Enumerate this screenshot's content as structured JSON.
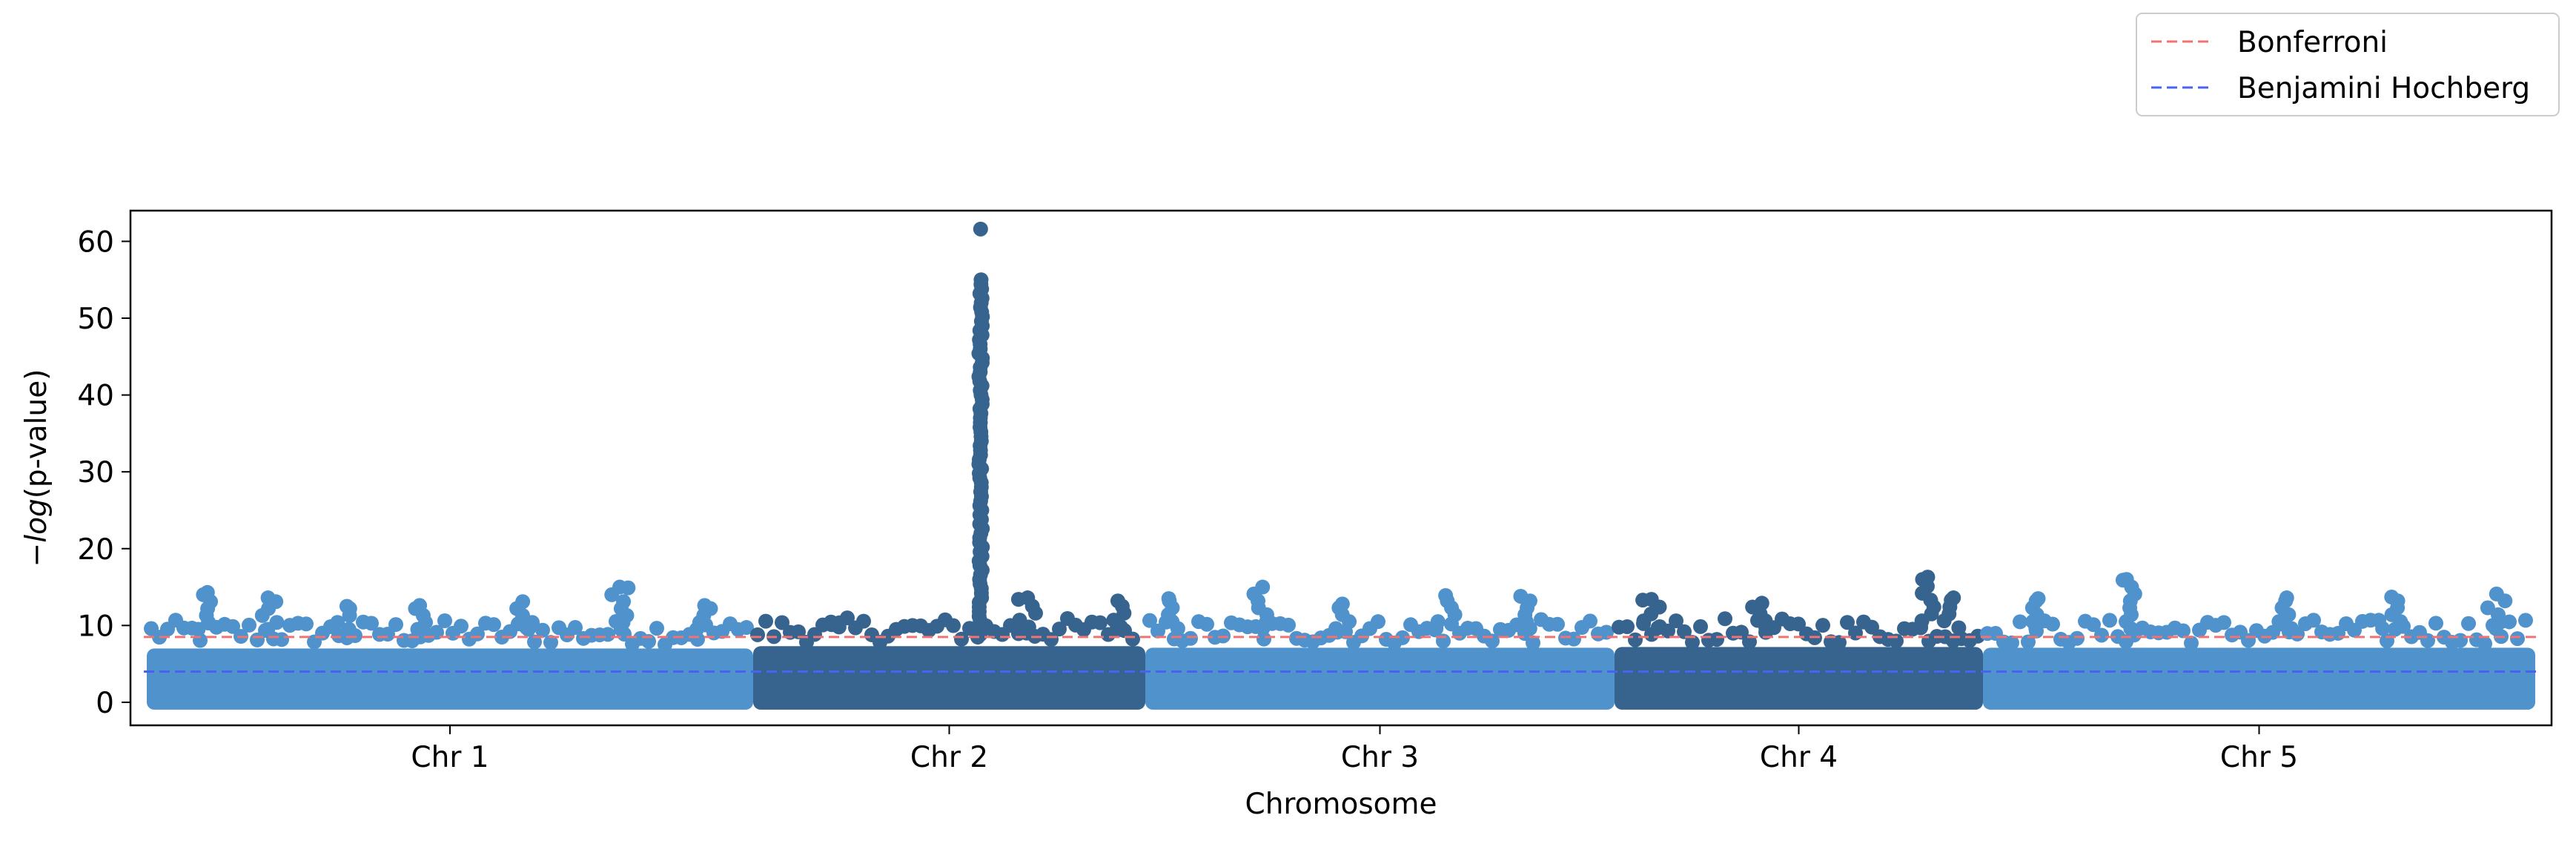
{
  "chart_data": {
    "type": "scatter",
    "title": "",
    "xlabel": "Chromosome",
    "ylabel": "p-value",
    "ylabel_prefix": "−",
    "ylabel_italic": "log",
    "ylim": [
      -3,
      64
    ],
    "y_ticks": [
      0,
      10,
      20,
      30,
      40,
      50,
      60
    ],
    "grid": false,
    "legend_placement": "top-right",
    "colors": {
      "light": "#4f92cc",
      "dark": "#37648f",
      "bonferroni": "#f07272",
      "bh": "#4a62f0"
    },
    "chromosomes": [
      {
        "name": "Chr 1",
        "color": "light",
        "baseline": 8.5,
        "peaks": [
          [
            0.1,
            14.3
          ],
          [
            0.2,
            13.6
          ],
          [
            0.33,
            12.5
          ],
          [
            0.45,
            12.6
          ],
          [
            0.62,
            13.1
          ],
          [
            0.78,
            15.0
          ],
          [
            0.92,
            12.6
          ]
        ]
      },
      {
        "name": "Chr 2",
        "color": "dark",
        "baseline": 8.8,
        "peaks": [
          [
            0.2,
            10.1
          ],
          [
            0.58,
            61.6
          ],
          [
            0.7,
            13.6
          ],
          [
            0.93,
            13.2
          ]
        ]
      },
      {
        "name": "Chr 3",
        "color": "light",
        "baseline": 8.6,
        "peaks": [
          [
            0.05,
            13.5
          ],
          [
            0.25,
            15.0
          ],
          [
            0.42,
            12.8
          ],
          [
            0.64,
            13.9
          ],
          [
            0.8,
            13.8
          ]
        ]
      },
      {
        "name": "Chr 4",
        "color": "dark",
        "baseline": 8.7,
        "peaks": [
          [
            0.1,
            13.4
          ],
          [
            0.4,
            12.9
          ],
          [
            0.85,
            16.3
          ],
          [
            0.92,
            13.6
          ]
        ]
      },
      {
        "name": "Chr 5",
        "color": "light",
        "baseline": 8.6,
        "peaks": [
          [
            0.1,
            13.5
          ],
          [
            0.26,
            16.0
          ],
          [
            0.55,
            13.6
          ],
          [
            0.74,
            13.7
          ],
          [
            0.93,
            14.1
          ]
        ]
      }
    ],
    "thresholds": [
      {
        "name": "Bonferroni",
        "value": 8.5,
        "color": "#f07272"
      },
      {
        "name": "Benjamini Hochberg",
        "value": 4.0,
        "color": "#4a62f0"
      }
    ]
  }
}
